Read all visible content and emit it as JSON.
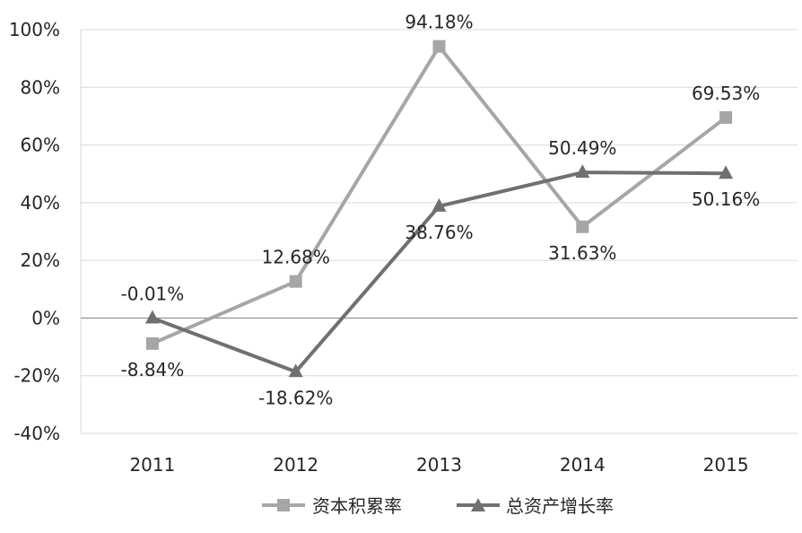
{
  "chart_data": {
    "type": "line",
    "categories": [
      "2011",
      "2012",
      "2013",
      "2014",
      "2015"
    ],
    "series": [
      {
        "name": "资本积累率",
        "values": [
          -8.84,
          12.68,
          94.18,
          31.63,
          69.53
        ],
        "labels": [
          "-8.84%",
          "12.68%",
          "94.18%",
          "31.63%",
          "69.53%"
        ],
        "color": "#a6a6a6",
        "marker": "square"
      },
      {
        "name": "总资产增长率",
        "values": [
          -0.01,
          -18.62,
          38.76,
          50.49,
          50.16
        ],
        "labels": [
          "-0.01%",
          "-18.62%",
          "38.76%",
          "50.49%",
          "50.16%"
        ],
        "color": "#707070",
        "marker": "triangle"
      }
    ],
    "y_ticks": [
      "100%",
      "80%",
      "60%",
      "40%",
      "20%",
      "0%",
      "-20%",
      "-40%"
    ],
    "ylim": [
      -40,
      100
    ],
    "grid": true,
    "legend_position": "bottom"
  }
}
